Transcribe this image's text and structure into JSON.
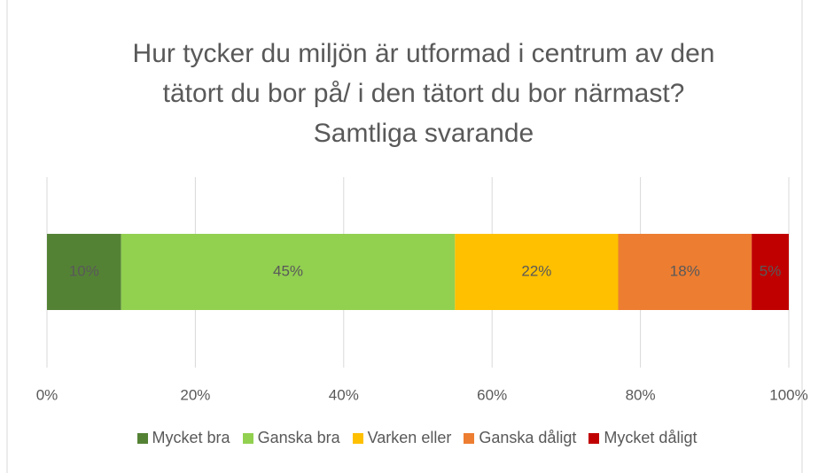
{
  "chart_data": {
    "type": "stacked-bar-horizontal",
    "title": "Hur tycker du miljön är utformad i centrum av den tätort du bor på/ i den tätort du bor närmast? Samtliga svarande",
    "categories": [
      null
    ],
    "series": [
      {
        "name": "Mycket bra",
        "color": "#548235",
        "values": [
          10
        ],
        "value_labels": [
          "10%"
        ]
      },
      {
        "name": "Ganska bra",
        "color": "#92d050",
        "values": [
          45
        ],
        "value_labels": [
          "45%"
        ]
      },
      {
        "name": "Varken eller",
        "color": "#ffc000",
        "values": [
          22
        ],
        "value_labels": [
          "22%"
        ]
      },
      {
        "name": "Ganska dåligt",
        "color": "#ed7d31",
        "values": [
          18
        ],
        "value_labels": [
          "18%"
        ]
      },
      {
        "name": "Mycket dåligt",
        "color": "#c00000",
        "values": [
          5
        ],
        "value_labels": [
          "5%"
        ]
      }
    ],
    "xlim": [
      0,
      100
    ],
    "xticks": [
      {
        "value": 0,
        "label": "0%"
      },
      {
        "value": 20,
        "label": "20%"
      },
      {
        "value": 40,
        "label": "40%"
      },
      {
        "value": 60,
        "label": "60%"
      },
      {
        "value": 80,
        "label": "80%"
      },
      {
        "value": 100,
        "label": "100%"
      }
    ],
    "grid": true
  }
}
